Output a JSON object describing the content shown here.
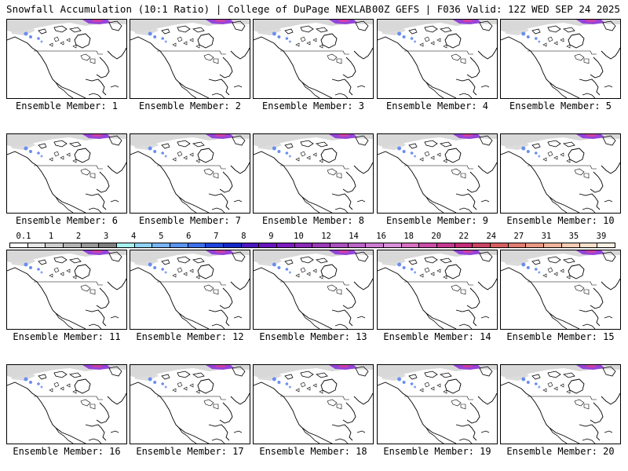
{
  "header": {
    "left_title": "Snowfall Accumulation (10:1 Ratio) | College of DuPage NEXLAB",
    "right_title": "00Z GEFS | F036 Valid: 12Z WED SEP 24 2025"
  },
  "panel_label_prefix": "Ensemble Member: ",
  "members": [
    1,
    2,
    3,
    4,
    5,
    6,
    7,
    8,
    9,
    10,
    11,
    12,
    13,
    14,
    15,
    16,
    17,
    18,
    19,
    20
  ],
  "colorbar": {
    "labels": [
      "0.1",
      "1",
      "2",
      "3",
      "4",
      "5",
      "6",
      "7",
      "8",
      "9",
      "10",
      "12",
      "14",
      "16",
      "18",
      "20",
      "22",
      "24",
      "27",
      "31",
      "35",
      "39"
    ],
    "colors": [
      "#ffffff",
      "#e8e8e8",
      "#cfcfcf",
      "#b4b4b4",
      "#9a9a9a",
      "#7f7f7f",
      "#a6f0f0",
      "#8fd4f6",
      "#78b4f4",
      "#5a94f0",
      "#3c70ea",
      "#1e44de",
      "#1428c8",
      "#4a18c0",
      "#6a14c0",
      "#7c1cc0",
      "#8a2ab8",
      "#9a3cb8",
      "#aa50c0",
      "#bc64c8",
      "#cc7cd0",
      "#d890d8",
      "#d670c0",
      "#cc4ca8",
      "#c43890",
      "#c42c78",
      "#cc4464",
      "#d66060",
      "#e07c70",
      "#e89884",
      "#f0b49c",
      "#f6ccb4",
      "#f9e0cc",
      "#fcf0e4"
    ]
  },
  "colors": {
    "land_outline": "#000000",
    "snow_light": "#d8d8d8",
    "snow_blue": "#6a8ef0",
    "snow_purple": "#8a2ad8",
    "snow_pink": "#d040a8"
  }
}
